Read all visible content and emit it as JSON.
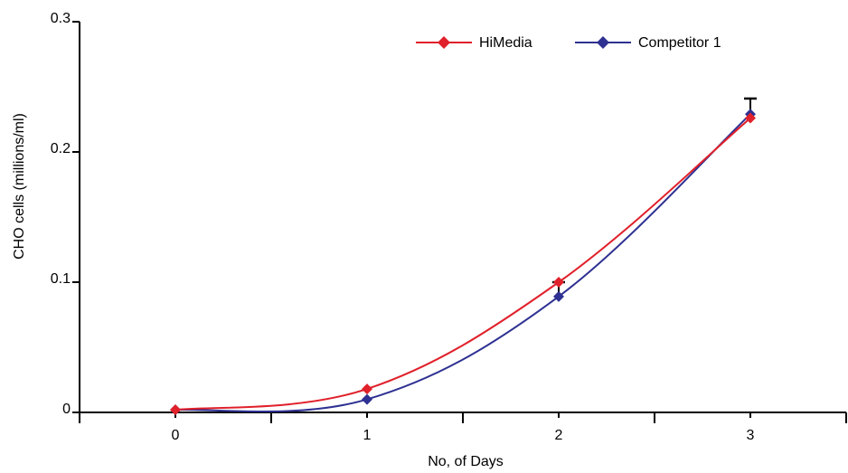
{
  "chart_data": {
    "type": "line",
    "xlabel": "No, of Days",
    "ylabel": "CHO cells (millions/ml)",
    "x": [
      0,
      1,
      2,
      3
    ],
    "xlim": [
      -0.5,
      3.5
    ],
    "ylim": [
      0,
      0.3
    ],
    "x_ticks": [
      "0",
      "1",
      "2",
      "3"
    ],
    "y_ticks": [
      "0",
      "0.1",
      "0.2",
      "0.3"
    ],
    "grid": false,
    "legend_position": "top-right",
    "series": [
      {
        "name": "HiMedia",
        "color": "#e0202a",
        "values": [
          0.002,
          0.018,
          0.1,
          0.226
        ],
        "marker": "diamond"
      },
      {
        "name": "Competitor 1",
        "color": "#2e3192",
        "values": [
          0.002,
          0.01,
          0.089,
          0.229
        ],
        "marker": "diamond",
        "error_upper": [
          0,
          0,
          0.1,
          0.241
        ]
      }
    ]
  }
}
